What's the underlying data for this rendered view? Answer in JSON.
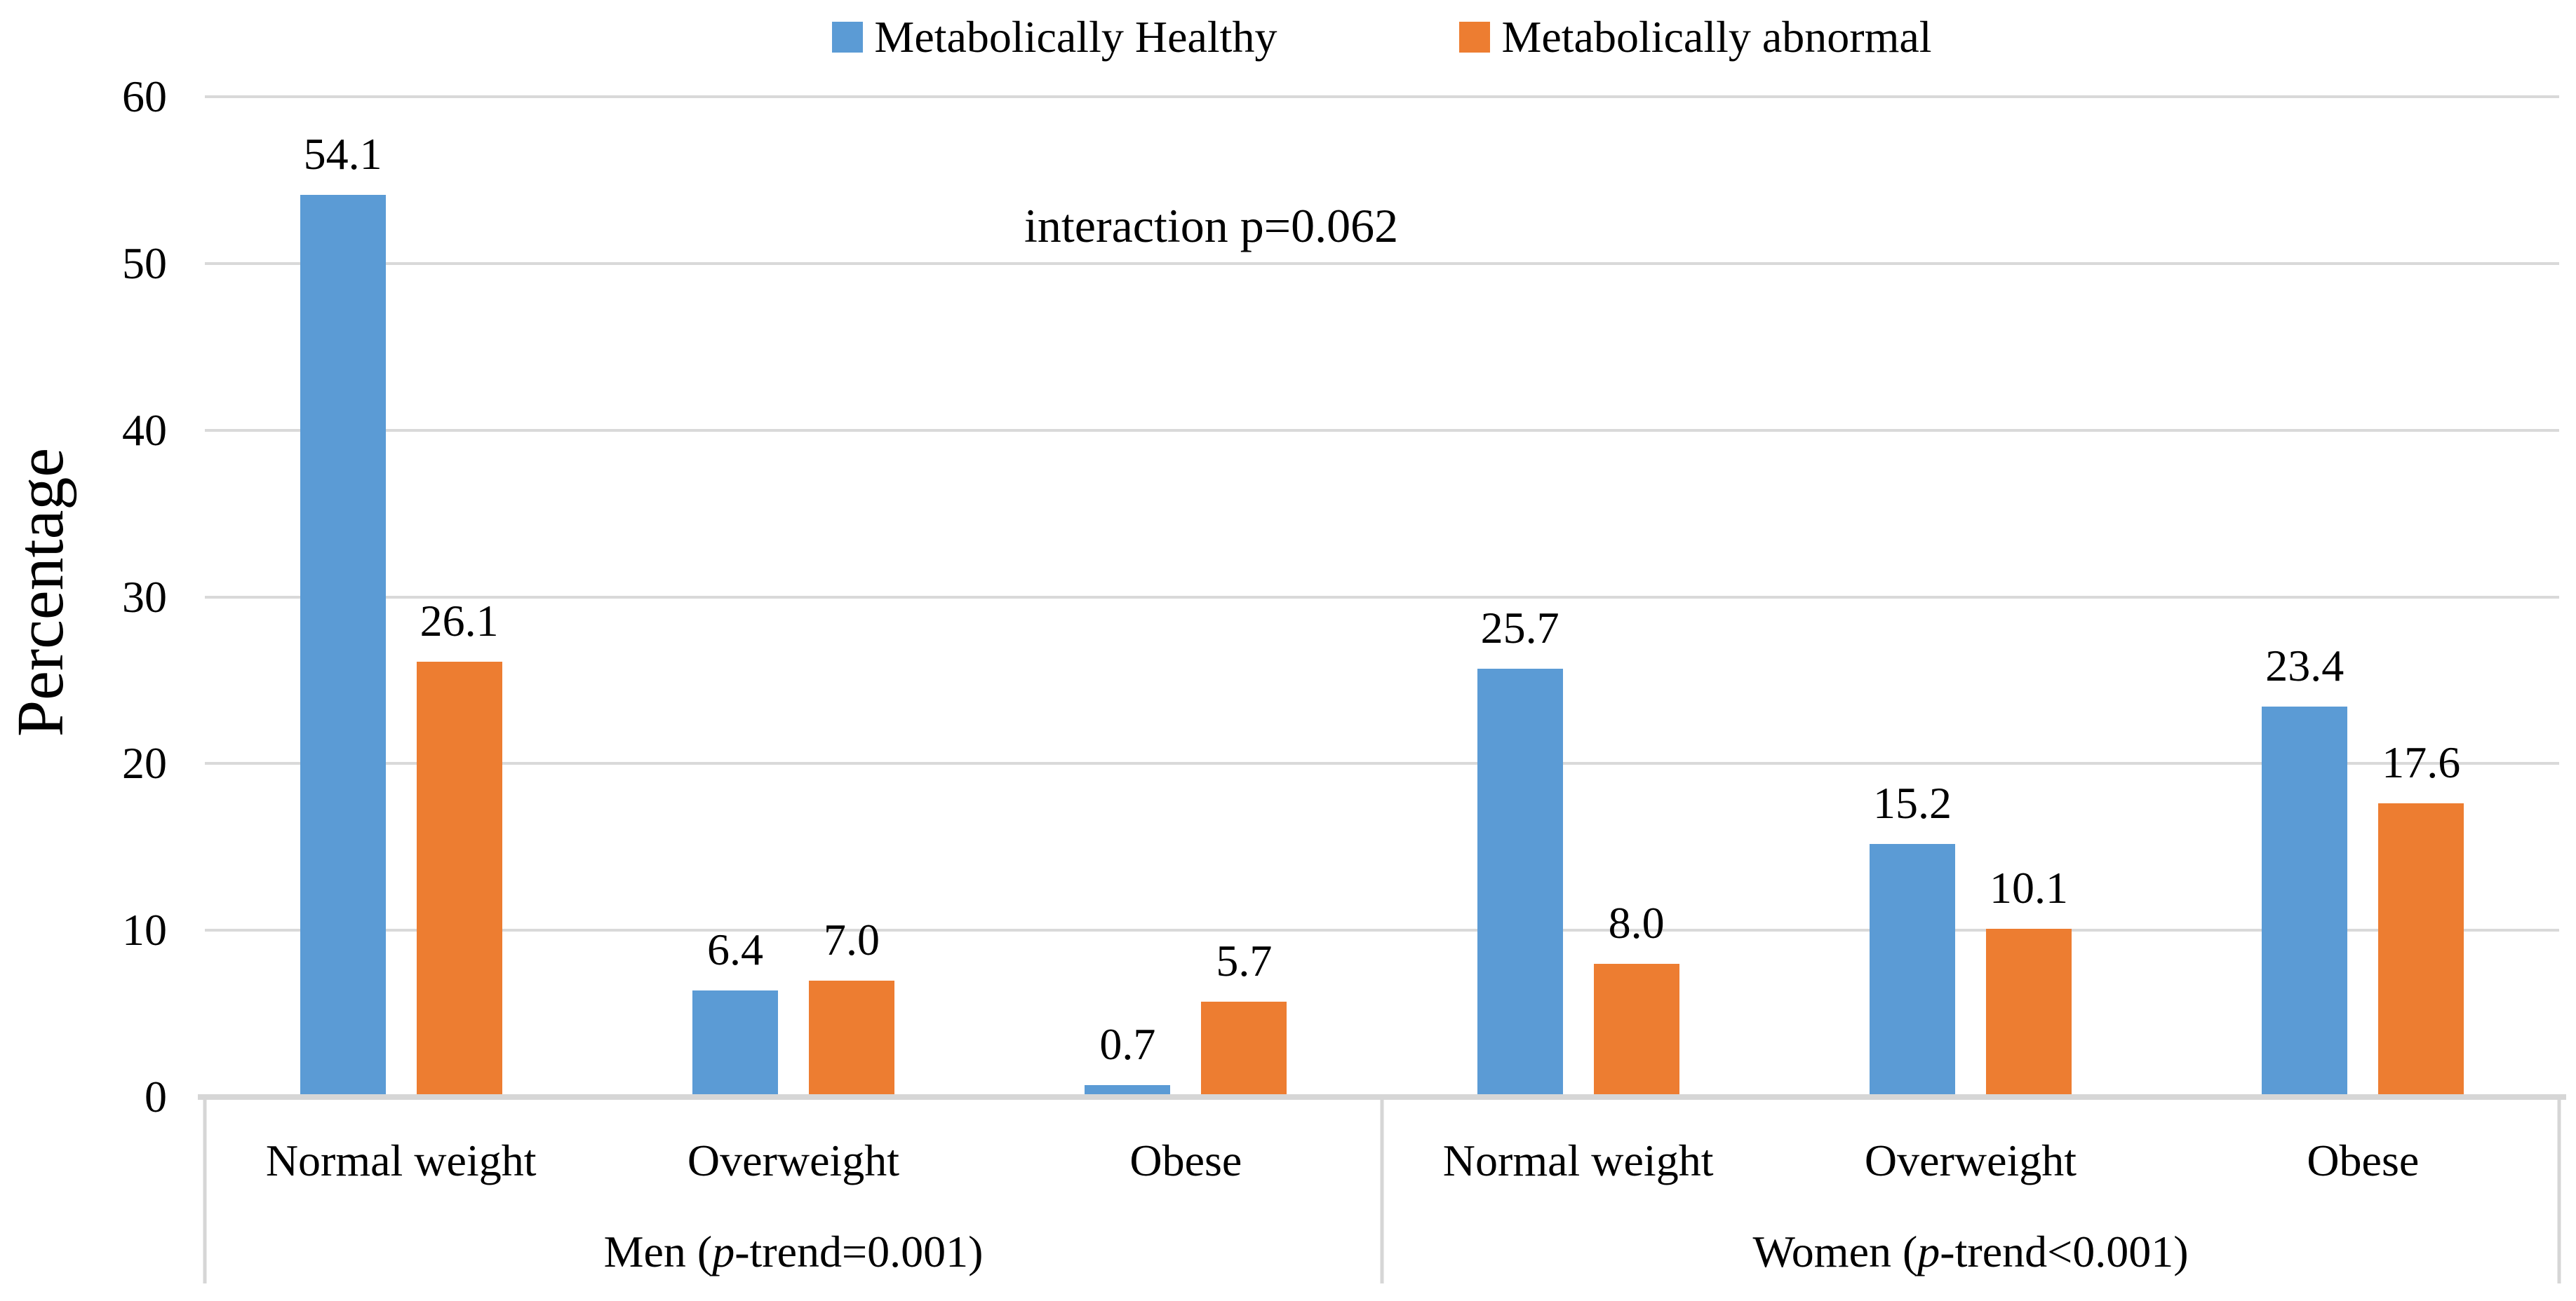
{
  "chart_data": {
    "type": "bar",
    "title": "",
    "annotation": "interaction p=0.062",
    "ylabel": "Percentage",
    "ylim": [
      0,
      60
    ],
    "yticks": [
      0,
      10,
      20,
      30,
      40,
      50,
      60
    ],
    "grid": true,
    "legend_position": "top-center",
    "series": [
      {
        "name": "Metabolically Healthy",
        "color": "#5B9BD5"
      },
      {
        "name": "Metabolically abnormal",
        "color": "#ED7D31"
      }
    ],
    "groups": [
      {
        "label_text": "Men (p-trend=0.001)",
        "label_parts": {
          "pre": "Men (",
          "italic": "p",
          "post": "-trend=0.001)"
        },
        "categories": [
          "Normal weight",
          "Overweight",
          "Obese"
        ],
        "series_values": [
          [
            54.1,
            6.4,
            0.7
          ],
          [
            26.1,
            7.0,
            5.7
          ]
        ],
        "series_value_labels": [
          [
            "54.1",
            "6.4",
            "0.7"
          ],
          [
            "26.1",
            "7.0",
            "5.7"
          ]
        ]
      },
      {
        "label_text": "Women (p-trend<0.001)",
        "label_parts": {
          "pre": "Women (",
          "italic": "p",
          "post": "-trend<0.001)"
        },
        "categories": [
          "Normal weight",
          "Overweight",
          "Obese"
        ],
        "series_values": [
          [
            25.7,
            15.2,
            23.4
          ],
          [
            8.0,
            10.1,
            17.6
          ]
        ],
        "series_value_labels": [
          [
            "25.7",
            "15.2",
            "23.4"
          ],
          [
            "8.0",
            "10.1",
            "17.6"
          ]
        ]
      }
    ],
    "colors": {
      "grid": "#D9D9D9",
      "axis_line": "#D6D6D6",
      "text": "#000000",
      "background": "#FFFFFF"
    }
  }
}
